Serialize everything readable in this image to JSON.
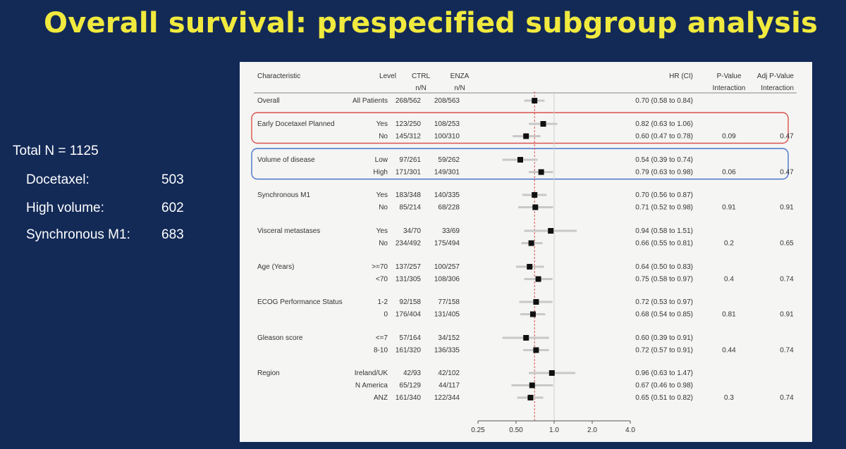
{
  "slide": {
    "title": "Overall survival: prespecified subgroup analysis",
    "stats": {
      "total": "Total N = 1125",
      "docetaxel_label": "Docetaxel:",
      "docetaxel_value": "503",
      "high_volume_label": "High volume:",
      "high_volume_value": "602",
      "synchronous_label": "Synchronous M1:",
      "synchronous_value": "683"
    }
  },
  "chart_data": {
    "type": "forest",
    "title": "",
    "x_scale": "log",
    "x_ticks": [
      "0.25",
      "0.50",
      "1.0",
      "2.0",
      "4.0"
    ],
    "x_tick_values": [
      0.25,
      0.5,
      1.0,
      2.0,
      4.0
    ],
    "reference_line": 1.0,
    "overall_line": 0.7,
    "headers": {
      "characteristic": "Characteristic",
      "level": "Level",
      "ctrl": "CTRL",
      "ctrl_sub": "n/N",
      "enza": "ENZA",
      "enza_sub": "n/N",
      "hr": "HR (CI)",
      "pval1": "P-Value",
      "pval2": "Interaction",
      "adjp1": "Adj P-Value",
      "adjp2": "Interaction"
    },
    "highlight_colors": {
      "docetaxel": "#d9534f",
      "volume": "#4a74c9"
    },
    "groups": [
      {
        "characteristic": "Overall",
        "pval": "",
        "adjp": "",
        "highlight": "",
        "rows": [
          {
            "level": "All Patients",
            "ctrl": "268/562",
            "enza": "208/563",
            "hr": 0.7,
            "lo": 0.58,
            "hi": 0.84,
            "ci_text": "0.70 (0.58 to 0.84)"
          }
        ]
      },
      {
        "characteristic": "Early Docetaxel Planned",
        "pval": "0.09",
        "adjp": "0.47",
        "highlight": "docetaxel",
        "rows": [
          {
            "level": "Yes",
            "ctrl": "123/250",
            "enza": "108/253",
            "hr": 0.82,
            "lo": 0.63,
            "hi": 1.06,
            "ci_text": "0.82 (0.63 to 1.06)"
          },
          {
            "level": "No",
            "ctrl": "145/312",
            "enza": "100/310",
            "hr": 0.6,
            "lo": 0.47,
            "hi": 0.78,
            "ci_text": "0.60 (0.47 to 0.78)"
          }
        ]
      },
      {
        "characteristic": "Volume of disease",
        "pval": "0.06",
        "adjp": "0.47",
        "highlight": "volume",
        "rows": [
          {
            "level": "Low",
            "ctrl": "97/261",
            "enza": "59/262",
            "hr": 0.54,
            "lo": 0.39,
            "hi": 0.74,
            "ci_text": "0.54 (0.39 to 0.74)"
          },
          {
            "level": "High",
            "ctrl": "171/301",
            "enza": "149/301",
            "hr": 0.79,
            "lo": 0.63,
            "hi": 0.98,
            "ci_text": "0.79 (0.63 to 0.98)"
          }
        ]
      },
      {
        "characteristic": "Synchronous M1",
        "pval": "0.91",
        "adjp": "0.91",
        "highlight": "",
        "rows": [
          {
            "level": "Yes",
            "ctrl": "183/348",
            "enza": "140/335",
            "hr": 0.7,
            "lo": 0.56,
            "hi": 0.87,
            "ci_text": "0.70 (0.56 to 0.87)"
          },
          {
            "level": "No",
            "ctrl": "85/214",
            "enza": "68/228",
            "hr": 0.71,
            "lo": 0.52,
            "hi": 0.98,
            "ci_text": "0.71 (0.52 to 0.98)"
          }
        ]
      },
      {
        "characteristic": "Visceral metastases",
        "pval": "0.2",
        "adjp": "0.65",
        "highlight": "",
        "rows": [
          {
            "level": "Yes",
            "ctrl": "34/70",
            "enza": "33/69",
            "hr": 0.94,
            "lo": 0.58,
            "hi": 1.51,
            "ci_text": "0.94 (0.58 to 1.51)"
          },
          {
            "level": "No",
            "ctrl": "234/492",
            "enza": "175/494",
            "hr": 0.66,
            "lo": 0.55,
            "hi": 0.81,
            "ci_text": "0.66 (0.55 to 0.81)"
          }
        ]
      },
      {
        "characteristic": "Age (Years)",
        "pval": "0.4",
        "adjp": "0.74",
        "highlight": "",
        "rows": [
          {
            "level": ">=70",
            "ctrl": "137/257",
            "enza": "100/257",
            "hr": 0.64,
            "lo": 0.5,
            "hi": 0.83,
            "ci_text": "0.64 (0.50 to 0.83)"
          },
          {
            "level": "<70",
            "ctrl": "131/305",
            "enza": "108/306",
            "hr": 0.75,
            "lo": 0.58,
            "hi": 0.97,
            "ci_text": "0.75 (0.58 to 0.97)"
          }
        ]
      },
      {
        "characteristic": "ECOG Performance Status",
        "pval": "0.81",
        "adjp": "0.91",
        "highlight": "",
        "rows": [
          {
            "level": "1-2",
            "ctrl": "92/158",
            "enza": "77/158",
            "hr": 0.72,
            "lo": 0.53,
            "hi": 0.97,
            "ci_text": "0.72 (0.53 to 0.97)"
          },
          {
            "level": "0",
            "ctrl": "176/404",
            "enza": "131/405",
            "hr": 0.68,
            "lo": 0.54,
            "hi": 0.85,
            "ci_text": "0.68 (0.54 to 0.85)"
          }
        ]
      },
      {
        "characteristic": "Gleason score",
        "pval": "0.44",
        "adjp": "0.74",
        "highlight": "",
        "rows": [
          {
            "level": "<=7",
            "ctrl": "57/164",
            "enza": "34/152",
            "hr": 0.6,
            "lo": 0.39,
            "hi": 0.91,
            "ci_text": "0.60 (0.39 to 0.91)"
          },
          {
            "level": "8-10",
            "ctrl": "161/320",
            "enza": "136/335",
            "hr": 0.72,
            "lo": 0.57,
            "hi": 0.91,
            "ci_text": "0.72 (0.57 to 0.91)"
          }
        ]
      },
      {
        "characteristic": "Region",
        "pval": "0.3",
        "adjp": "0.74",
        "highlight": "",
        "rows": [
          {
            "level": "Ireland/UK",
            "ctrl": "42/93",
            "enza": "42/102",
            "hr": 0.96,
            "lo": 0.63,
            "hi": 1.47,
            "ci_text": "0.96 (0.63 to 1.47)"
          },
          {
            "level": "N America",
            "ctrl": "65/129",
            "enza": "44/117",
            "hr": 0.67,
            "lo": 0.46,
            "hi": 0.98,
            "ci_text": "0.67 (0.46 to 0.98)"
          },
          {
            "level": "ANZ",
            "ctrl": "161/340",
            "enza": "122/344",
            "hr": 0.65,
            "lo": 0.51,
            "hi": 0.82,
            "ci_text": "0.65 (0.51 to 0.82)"
          }
        ]
      }
    ]
  }
}
